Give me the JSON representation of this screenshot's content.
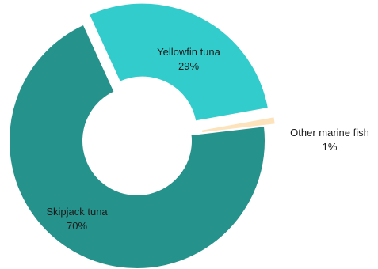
{
  "chart_data": {
    "type": "pie",
    "variant": "donut",
    "title": "",
    "slices": [
      {
        "label": "Skipjack tuna",
        "value": 70,
        "value_label": "70%",
        "color": "#26928c"
      },
      {
        "label": "Yellowfin tuna",
        "value": 29,
        "value_label": "29%",
        "color": "#33cccc"
      },
      {
        "label": "Other marine fish",
        "value": 1,
        "value_label": "1%",
        "color": "#fde3bc"
      }
    ],
    "exploded": true,
    "legend": "none",
    "grid": false
  }
}
